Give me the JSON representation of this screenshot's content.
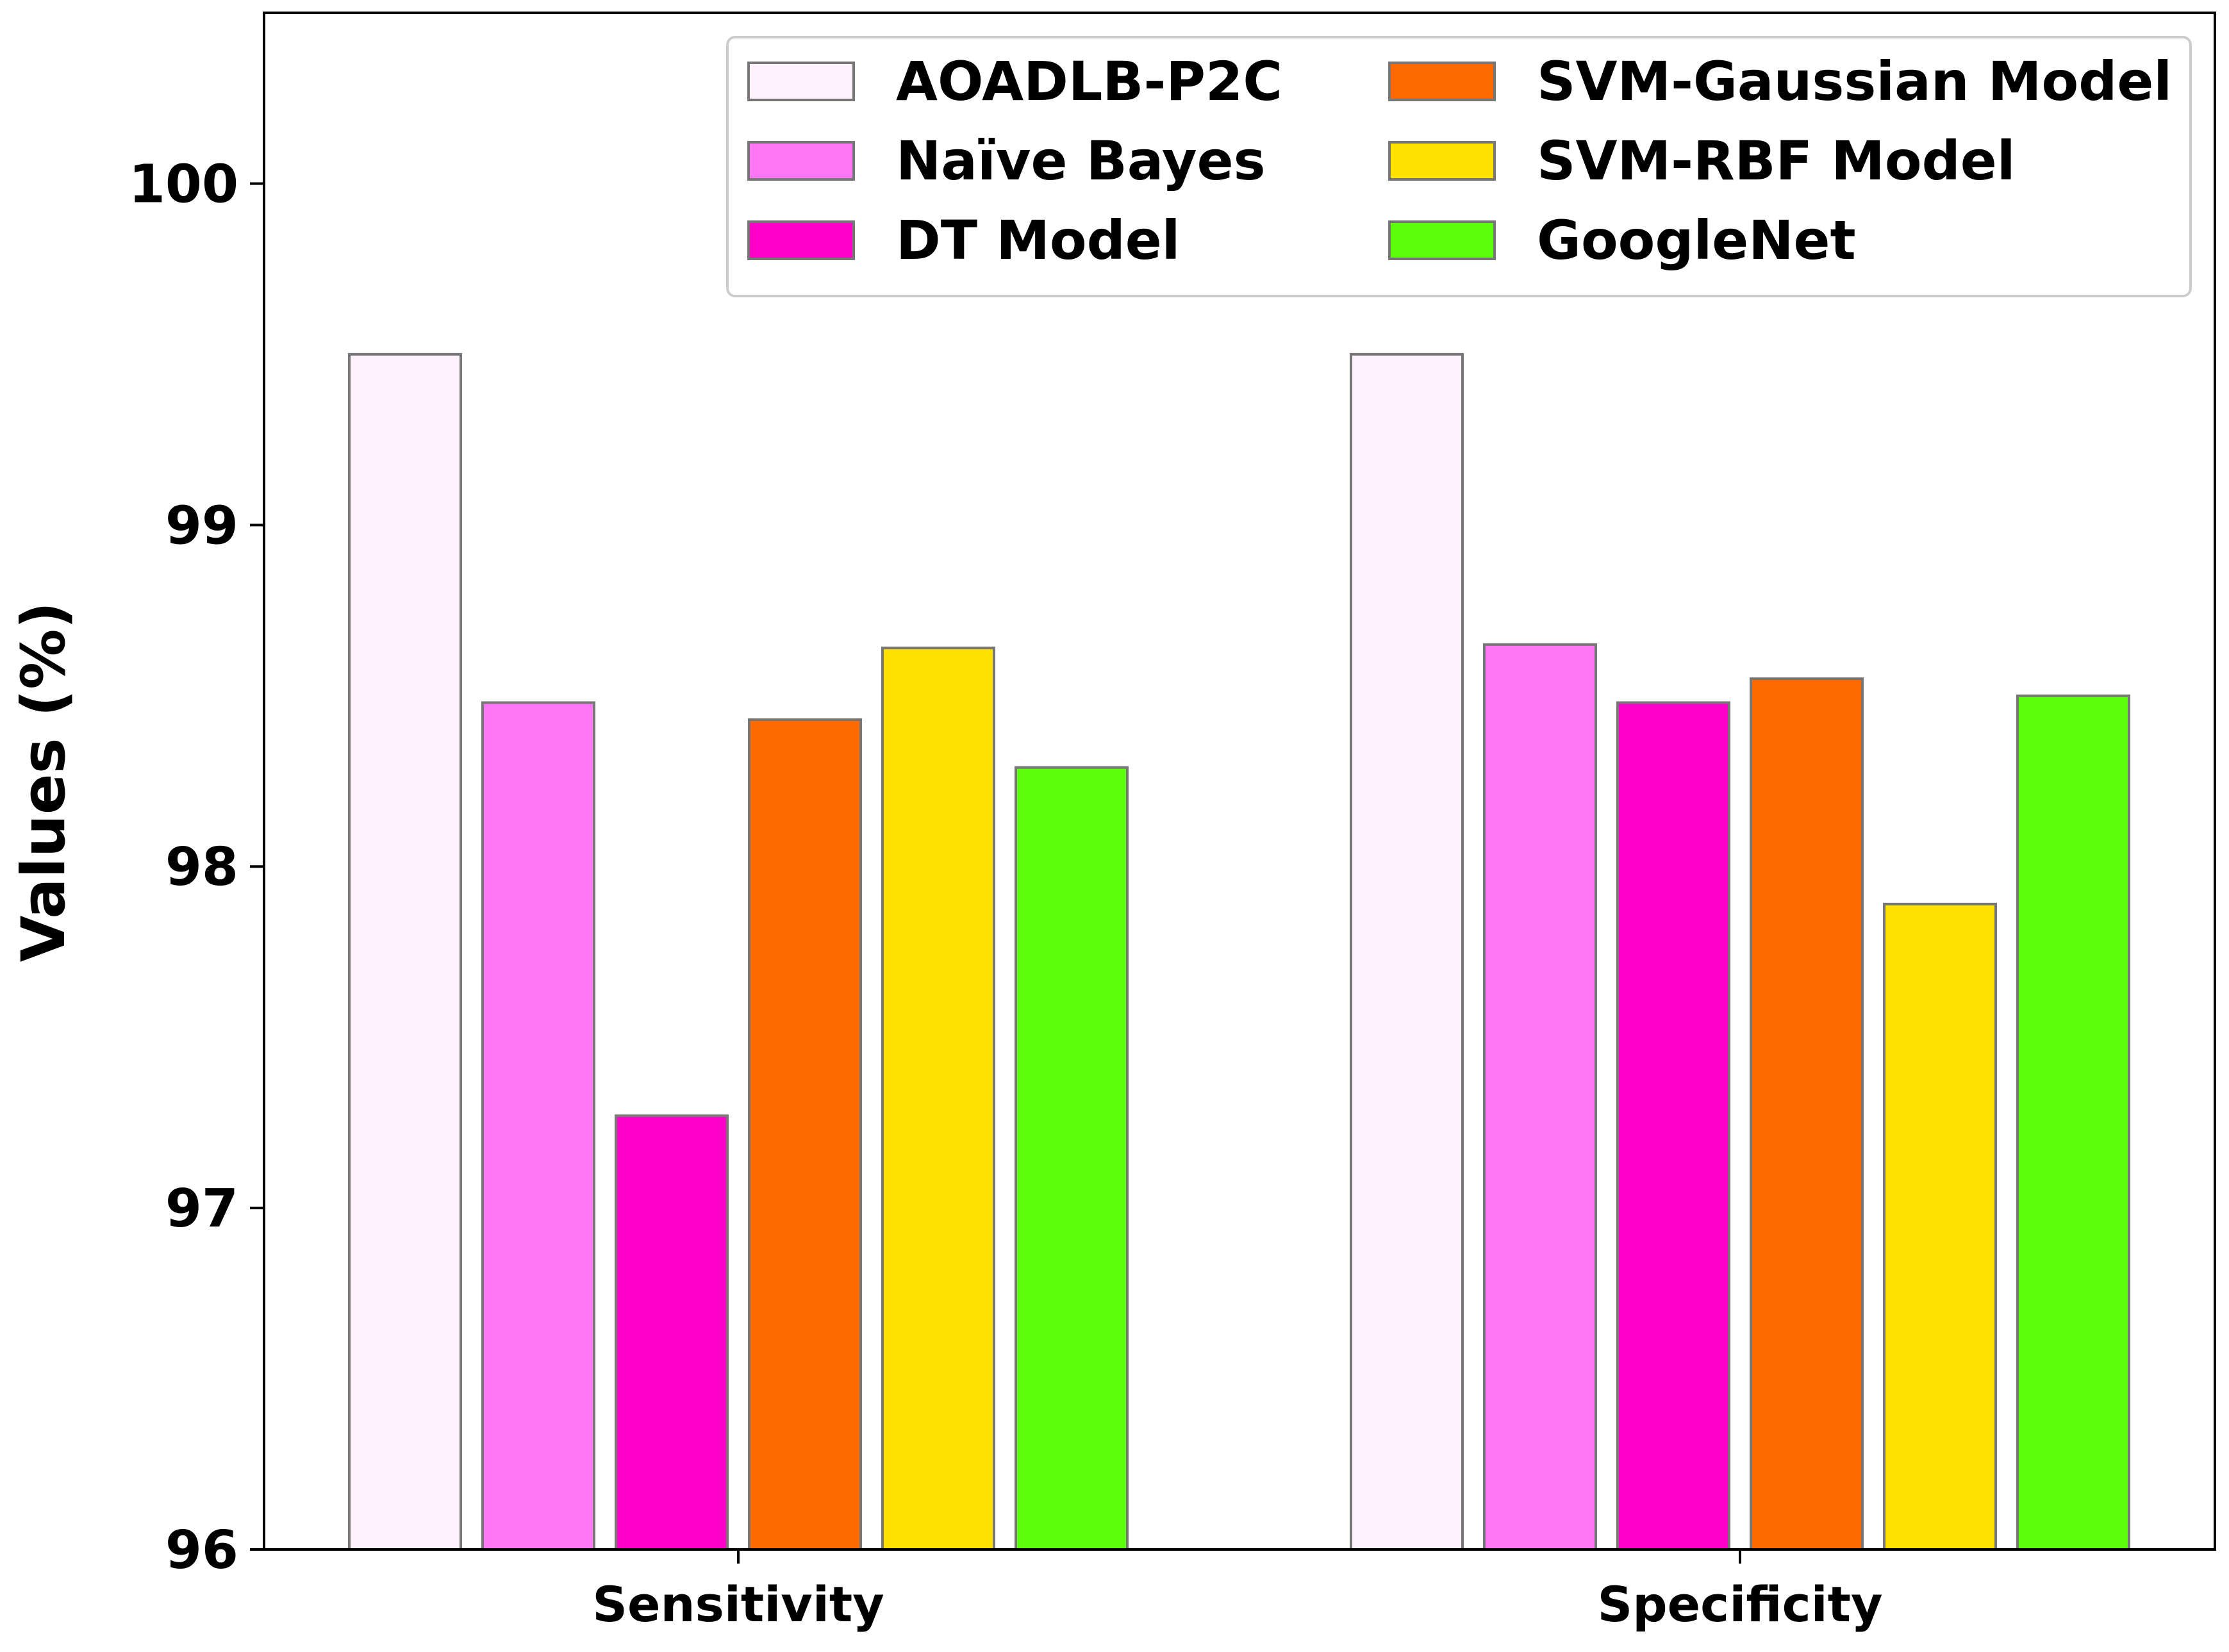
{
  "chart_data": {
    "type": "bar",
    "title": "",
    "xlabel": "",
    "ylabel": "Values (%)",
    "ylim": [
      96,
      100.5
    ],
    "yticks": [
      96,
      97,
      98,
      99,
      100
    ],
    "grid": false,
    "legend_position": "top-right",
    "categories": [
      "Sensitivity",
      "Specificity"
    ],
    "series": [
      {
        "name": "AOADLB-P2C",
        "color": "#fff2fc",
        "values": [
          99.5,
          99.5
        ]
      },
      {
        "name": "Naïve Bayes",
        "color": "#ff77f5",
        "values": [
          98.48,
          98.65
        ]
      },
      {
        "name": "DT Model",
        "color": "#ff00c8",
        "values": [
          97.27,
          98.48
        ]
      },
      {
        "name": "SVM-Gaussian Model",
        "color": "#ff6a00",
        "values": [
          98.43,
          98.55
        ]
      },
      {
        "name": "SVM-RBF Model",
        "color": "#ffe100",
        "values": [
          98.64,
          97.89
        ]
      },
      {
        "name": "GoogleNet",
        "color": "#5cff0a",
        "values": [
          98.29,
          98.5
        ]
      }
    ]
  }
}
